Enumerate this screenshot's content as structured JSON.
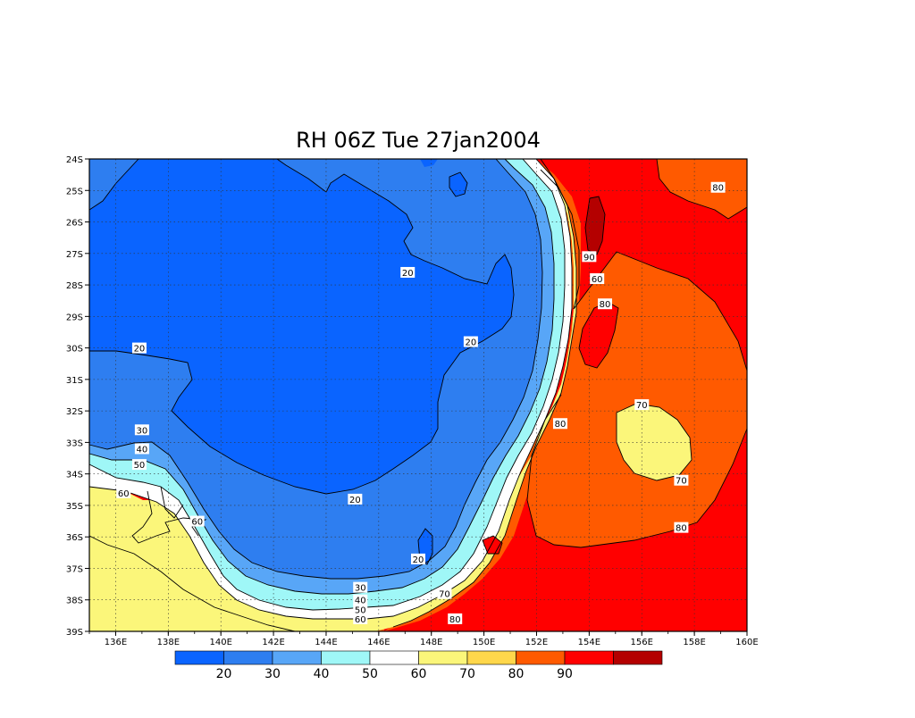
{
  "title": "RH 06Z Tue 27jan2004",
  "lat_ticks": [
    "24S",
    "25S",
    "26S",
    "27S",
    "28S",
    "29S",
    "30S",
    "31S",
    "32S",
    "33S",
    "34S",
    "35S",
    "36S",
    "37S",
    "38S",
    "39S"
  ],
  "lon_ticks": [
    "136E",
    "138E",
    "140E",
    "142E",
    "144E",
    "146E",
    "148E",
    "150E",
    "152E",
    "154E",
    "156E",
    "158E",
    "160E"
  ],
  "colorbar": {
    "colors": [
      "#0a64ff",
      "#2e7ef0",
      "#58a6f7",
      "#9ff7f7",
      "#ffffff",
      "#fbf67a",
      "#ffd74b",
      "#ff5a00",
      "#ff0000",
      "#b40000"
    ],
    "labels": [
      "20",
      "30",
      "40",
      "50",
      "60",
      "70",
      "80",
      "90"
    ]
  },
  "contour_labels": [
    {
      "text": "20",
      "lon": 136.9,
      "lat": -30.0
    },
    {
      "text": "20",
      "lon": 147.1,
      "lat": -27.6
    },
    {
      "text": "20",
      "lon": 149.5,
      "lat": -29.8
    },
    {
      "text": "20",
      "lon": 145.1,
      "lat": -34.8
    },
    {
      "text": "20",
      "lon": 147.5,
      "lat": -36.7
    },
    {
      "text": "30",
      "lon": 137.0,
      "lat": -32.6
    },
    {
      "text": "40",
      "lon": 137.0,
      "lat": -33.2
    },
    {
      "text": "50",
      "lon": 136.9,
      "lat": -33.7
    },
    {
      "text": "60",
      "lon": 136.3,
      "lat": -34.6
    },
    {
      "text": "60",
      "lon": 139.1,
      "lat": -35.5
    },
    {
      "text": "30",
      "lon": 145.3,
      "lat": -37.6
    },
    {
      "text": "40",
      "lon": 145.3,
      "lat": -38.0
    },
    {
      "text": "50",
      "lon": 145.3,
      "lat": -38.3
    },
    {
      "text": "60",
      "lon": 145.3,
      "lat": -38.6
    },
    {
      "text": "70",
      "lon": 148.5,
      "lat": -37.8
    },
    {
      "text": "80",
      "lon": 148.9,
      "lat": -38.6
    },
    {
      "text": "90",
      "lon": 154.0,
      "lat": -27.1
    },
    {
      "text": "60",
      "lon": 154.3,
      "lat": -27.8
    },
    {
      "text": "80",
      "lon": 154.6,
      "lat": -28.6
    },
    {
      "text": "80",
      "lon": 152.9,
      "lat": -32.4
    },
    {
      "text": "70",
      "lon": 156.0,
      "lat": -31.8
    },
    {
      "text": "70",
      "lon": 157.5,
      "lat": -34.2
    },
    {
      "text": "80",
      "lon": 157.5,
      "lat": -35.7
    },
    {
      "text": "80",
      "lon": 158.9,
      "lat": -24.9
    }
  ]
}
